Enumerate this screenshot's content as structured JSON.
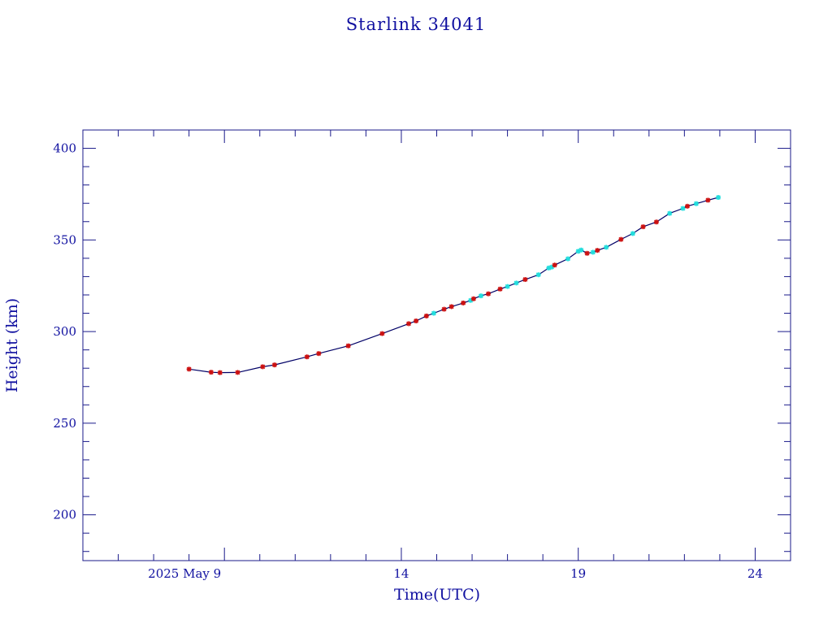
{
  "chart_data": {
    "type": "line",
    "title": "Starlink 34041",
    "xlabel": "Time(UTC)",
    "ylabel": "Height (km)",
    "xlim": [
      "2025-05-05",
      "2025-05-25"
    ],
    "ylim": [
      175,
      410
    ],
    "x_ticks": [
      {
        "date": "2025-05-09",
        "label": "2025 May  9"
      },
      {
        "date": "2025-05-14",
        "label": "14"
      },
      {
        "date": "2025-05-19",
        "label": "19"
      },
      {
        "date": "2025-05-24",
        "label": "24"
      }
    ],
    "y_ticks": [
      200,
      250,
      300,
      350,
      400
    ],
    "grid": false,
    "legend": "none",
    "series_colors": {
      "line": "#000066",
      "red_markers": "#cc1111",
      "cyan_markers": "#22dddd"
    },
    "series": [
      {
        "marker_color": "red",
        "points": [
          [
            "2025-05-08T00:00",
            279.5
          ],
          [
            "2025-05-08T15:00",
            277.8
          ],
          [
            "2025-05-08T21:00",
            277.6
          ],
          [
            "2025-05-09T09:00",
            277.7
          ],
          [
            "2025-05-10T02:00",
            280.8
          ],
          [
            "2025-05-10T10:00",
            281.8
          ],
          [
            "2025-05-11T08:00",
            286.2
          ],
          [
            "2025-05-11T16:00",
            288.0
          ],
          [
            "2025-05-12T12:00",
            292.2
          ],
          [
            "2025-05-13T11:00",
            298.9
          ],
          [
            "2025-05-14T05:00",
            304.3
          ],
          [
            "2025-05-14T10:00",
            305.8
          ],
          [
            "2025-05-14T17:00",
            308.5
          ],
          [
            "2025-05-15T05:00",
            312.2
          ],
          [
            "2025-05-15T10:00",
            313.6
          ],
          [
            "2025-05-15T18:00",
            315.6
          ],
          [
            "2025-05-16T01:00",
            317.9
          ],
          [
            "2025-05-16T11:00",
            320.6
          ],
          [
            "2025-05-16T19:00",
            323.2
          ],
          [
            "2025-05-17T12:00",
            328.4
          ],
          [
            "2025-05-18T08:00",
            336.3
          ],
          [
            "2025-05-19T06:00",
            342.7
          ],
          [
            "2025-05-19T13:00",
            344.3
          ],
          [
            "2025-05-20T05:00",
            350.3
          ],
          [
            "2025-05-20T20:00",
            357.2
          ],
          [
            "2025-05-21T05:00",
            359.8
          ],
          [
            "2025-05-22T02:00",
            368.4
          ],
          [
            "2025-05-22T16:00",
            371.7
          ]
        ]
      },
      {
        "marker_color": "cyan",
        "points": [
          [
            "2025-05-14T22:00",
            310.0
          ],
          [
            "2025-05-15T23:00",
            317.0
          ],
          [
            "2025-05-16T06:00",
            319.5
          ],
          [
            "2025-05-17T00:00",
            324.6
          ],
          [
            "2025-05-17T06:00",
            326.5
          ],
          [
            "2025-05-17T21:00",
            331.0
          ],
          [
            "2025-05-18T04:00",
            334.7
          ],
          [
            "2025-05-18T06:00",
            335.2
          ],
          [
            "2025-05-18T17:00",
            339.7
          ],
          [
            "2025-05-19T00:00",
            343.8
          ],
          [
            "2025-05-19T02:00",
            344.5
          ],
          [
            "2025-05-19T10:00",
            343.3
          ],
          [
            "2025-05-19T19:00",
            346.0
          ],
          [
            "2025-05-20T13:00",
            353.5
          ],
          [
            "2025-05-21T14:00",
            364.5
          ],
          [
            "2025-05-21T23:00",
            367.2
          ],
          [
            "2025-05-22T08:00",
            369.8
          ],
          [
            "2025-05-22T23:00",
            373.2
          ]
        ]
      }
    ]
  }
}
